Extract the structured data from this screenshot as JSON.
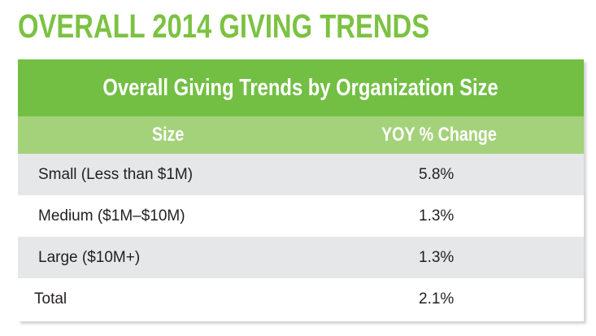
{
  "heading": "OVERALL 2014 GIVING TRENDS",
  "table": {
    "title": "Overall Giving Trends by Organization Size",
    "columns": [
      "Size",
      "YOY % Change"
    ],
    "rows": [
      {
        "size": "Small (Less than $1M)",
        "change": "5.8%"
      },
      {
        "size": "Medium ($1M–$10M)",
        "change": "1.3%"
      },
      {
        "size": "Large ($10M+)",
        "change": "1.3%"
      },
      {
        "size": "Total",
        "change": "2.1%"
      }
    ]
  },
  "colors": {
    "brand_green": "#7cc242",
    "title_bar": "#72bf44",
    "header_row": "#a4d27a",
    "shaded_row": "#e6e7e8",
    "body_text": "#231f20"
  }
}
